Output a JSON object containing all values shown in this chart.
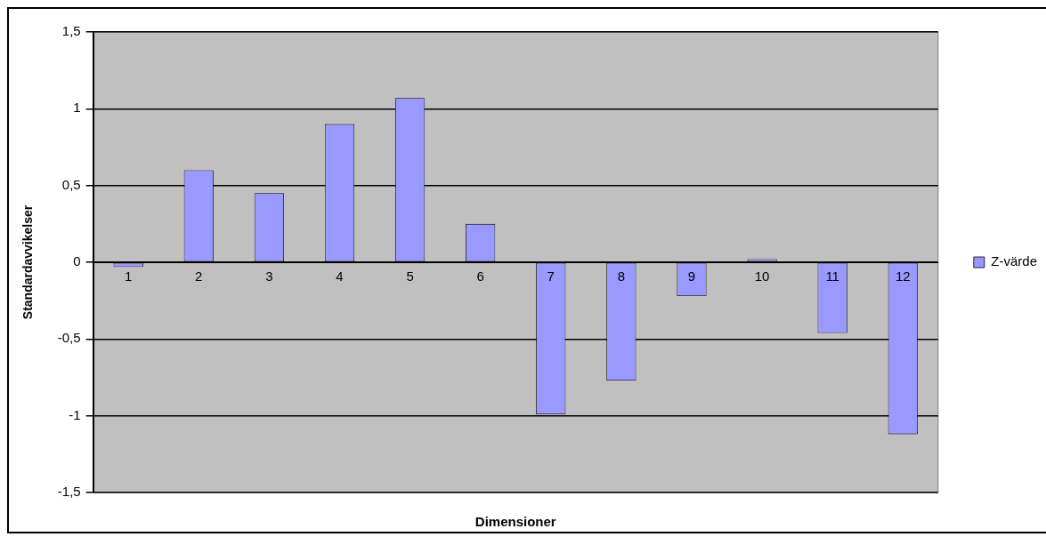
{
  "chart_data": {
    "type": "bar",
    "xlabel": "Dimensioner",
    "ylabel": "Standardavvikelser",
    "categories": [
      "1",
      "2",
      "3",
      "4",
      "5",
      "6",
      "7",
      "8",
      "9",
      "10",
      "11",
      "12"
    ],
    "series": [
      {
        "name": "Z-värde",
        "color": "#9999ff",
        "values": [
          -0.03,
          0.6,
          0.45,
          0.9,
          1.07,
          0.25,
          -0.99,
          -0.77,
          -0.22,
          0.02,
          -0.46,
          -1.12
        ]
      }
    ],
    "ylim": [
      -1.5,
      1.5
    ],
    "yticks": [
      {
        "value": -1.5,
        "label": "-1,5"
      },
      {
        "value": -1,
        "label": "-1"
      },
      {
        "value": -0.5,
        "label": "-0,5"
      },
      {
        "value": 0,
        "label": "0"
      },
      {
        "value": 0.5,
        "label": "0,5"
      },
      {
        "value": 1,
        "label": "1"
      },
      {
        "value": 1.5,
        "label": "1,5"
      }
    ],
    "grid": "y",
    "legend": "right"
  }
}
